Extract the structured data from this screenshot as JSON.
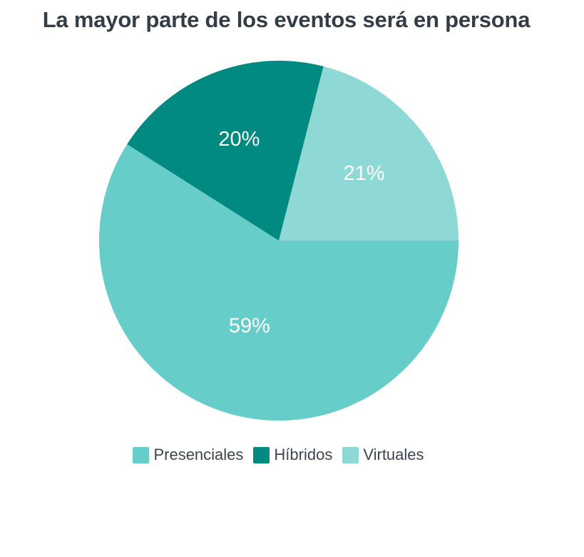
{
  "chart_data": {
    "type": "pie",
    "title": "La mayor parte de los eventos será en persona",
    "slices": [
      {
        "name": "Presenciales",
        "value": 59,
        "label": "59%",
        "color": "#66cdc8"
      },
      {
        "name": "Híbridos",
        "value": 20,
        "label": "20%",
        "color": "#008a81"
      },
      {
        "name": "Virtuales",
        "value": 21,
        "label": "21%",
        "color": "#8ed8d5"
      }
    ],
    "legend_position": "bottom"
  }
}
